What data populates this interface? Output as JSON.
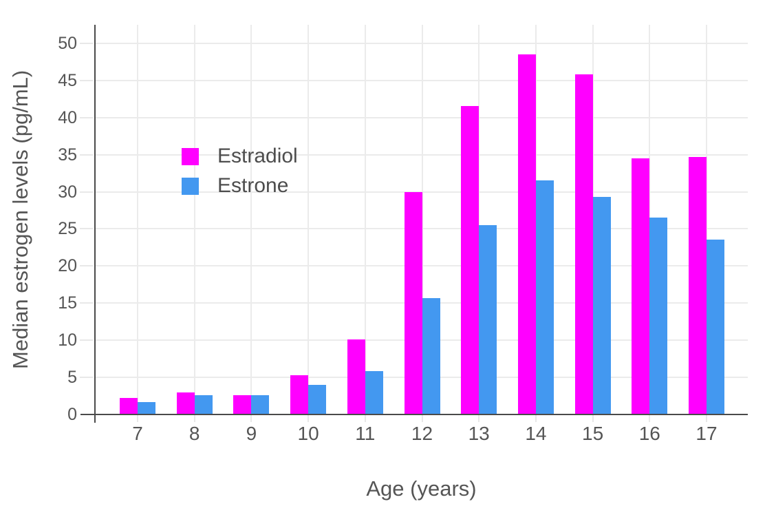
{
  "chart_data": {
    "type": "bar",
    "title": "",
    "xlabel": "Age (years)",
    "ylabel": "Median estrogen levels (pg/mL)",
    "categories": [
      "7",
      "8",
      "9",
      "10",
      "11",
      "12",
      "13",
      "14",
      "15",
      "16",
      "17"
    ],
    "series": [
      {
        "name": "Estradiol",
        "color": "#ff00ff",
        "values": [
          2.2,
          3.0,
          2.6,
          5.3,
          10.1,
          30.0,
          41.6,
          48.5,
          45.8,
          34.5,
          34.7
        ]
      },
      {
        "name": "Estrone",
        "color": "#4398f0",
        "values": [
          1.7,
          2.6,
          2.6,
          4.0,
          5.8,
          15.7,
          25.5,
          31.5,
          29.3,
          26.5,
          23.6
        ]
      }
    ],
    "ylim": [
      0,
      52.5
    ],
    "yticks": [
      0,
      5,
      10,
      15,
      20,
      25,
      30,
      35,
      40,
      45,
      50
    ],
    "grid": "both",
    "legend_position": "inside-upper-left"
  },
  "colors": {
    "background": "#ffffff",
    "gridline": "#ebebeb",
    "axis_line": "#4a4a4a",
    "tick_label": "#555555",
    "axis_title": "#555555",
    "legend_text": "#4d4d4d"
  }
}
